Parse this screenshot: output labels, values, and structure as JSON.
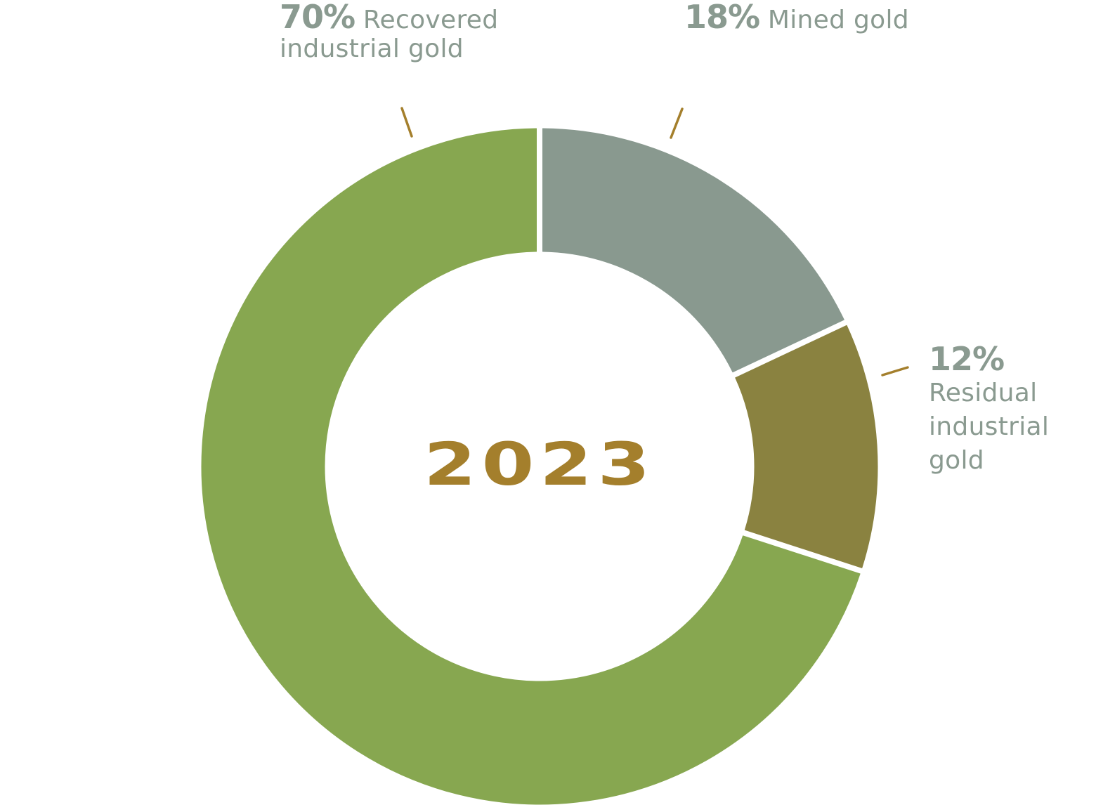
{
  "chart_data": {
    "type": "pie",
    "subtype": "donut",
    "title": "2023",
    "categories": [
      "Recovered industrial gold",
      "Mined gold",
      "Residual industrial gold"
    ],
    "values": [
      70,
      18,
      12
    ],
    "unit": "%",
    "colors": {
      "Recovered industrial gold": "#87a750",
      "Mined gold": "#89998f",
      "Residual industrial gold": "#8a8240"
    },
    "slice_order_clockwise_from_top": [
      "Mined gold",
      "Residual industrial gold",
      "Recovered industrial gold"
    ],
    "center_label": "2023",
    "legend": "inline labels with leader ticks"
  },
  "labels": {
    "recovered": {
      "pct": "70%",
      "text": "Recovered industrial gold",
      "line1": "Recovered",
      "line2": "industrial gold"
    },
    "mined": {
      "pct": "18%",
      "text": "Mined gold"
    },
    "residual": {
      "pct": "12%",
      "line1": "Residual",
      "line2": "industrial",
      "line3": "gold"
    }
  },
  "center": {
    "year": "2023"
  },
  "colors": {
    "label_text": "#8a9a90",
    "year_text": "#a47f2c",
    "leader_tick": "#a47f2c"
  }
}
